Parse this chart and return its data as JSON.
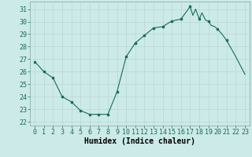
{
  "x_line": [
    0,
    1,
    2,
    3,
    4,
    5,
    6,
    7,
    8,
    9,
    10,
    11,
    12,
    13,
    14,
    15,
    16,
    17,
    17.3,
    17.6,
    18,
    18.3,
    18.7,
    19,
    19.3,
    19.7,
    20,
    20.5,
    21,
    22,
    23
  ],
  "y_line": [
    26.8,
    26.0,
    25.5,
    24.0,
    23.6,
    22.9,
    22.6,
    22.6,
    22.6,
    24.4,
    27.2,
    28.3,
    28.9,
    29.5,
    29.6,
    30.05,
    30.2,
    31.2,
    30.5,
    31.0,
    30.2,
    30.7,
    30.1,
    30.05,
    29.7,
    29.6,
    29.4,
    29.0,
    28.5,
    27.2,
    25.8
  ],
  "x_markers": [
    0,
    1,
    2,
    3,
    4,
    5,
    6,
    7,
    8,
    9,
    10,
    11,
    12,
    13,
    14,
    15,
    16,
    17,
    18,
    19,
    20,
    21
  ],
  "y_markers": [
    26.8,
    26.0,
    25.5,
    24.0,
    23.6,
    22.9,
    22.6,
    22.6,
    22.6,
    24.4,
    27.2,
    28.3,
    28.9,
    29.5,
    29.6,
    30.05,
    30.2,
    31.2,
    30.2,
    30.05,
    29.4,
    28.5
  ],
  "background_color": "#cceae7",
  "grid_color": "#b8d8d5",
  "line_color": "#1a6b5a",
  "marker_color": "#1a6b5a",
  "xlabel": "Humidex (Indice chaleur)",
  "ylim": [
    21.7,
    31.6
  ],
  "yticks": [
    22,
    23,
    24,
    25,
    26,
    27,
    28,
    29,
    30,
    31
  ],
  "xticks": [
    0,
    1,
    2,
    3,
    4,
    5,
    6,
    7,
    8,
    9,
    10,
    11,
    12,
    13,
    14,
    15,
    16,
    17,
    18,
    19,
    20,
    21,
    22,
    23
  ],
  "tick_fontsize": 6,
  "xlabel_fontsize": 7,
  "marker_size": 2.0
}
